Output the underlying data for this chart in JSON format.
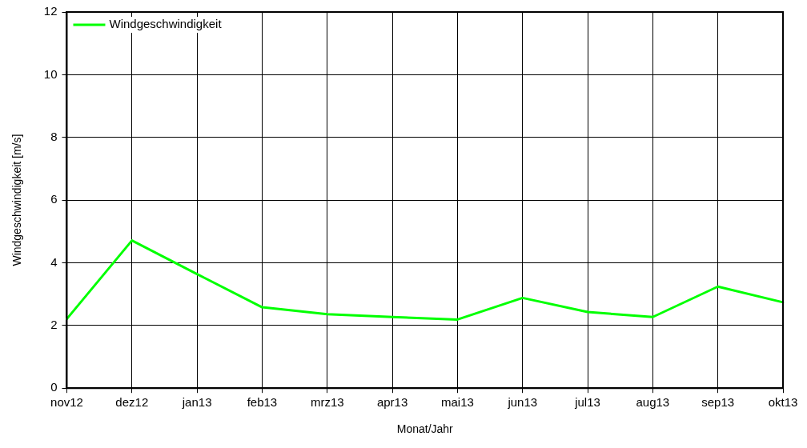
{
  "chart_data": {
    "type": "line",
    "xlabel": "Monat/Jahr",
    "ylabel": "Windgeschwindigkeit [m/s]",
    "categories": [
      "nov12",
      "dez12",
      "jan13",
      "feb13",
      "mrz13",
      "apr13",
      "mai13",
      "jun13",
      "jul13",
      "aug13",
      "sep13",
      "okt13"
    ],
    "series": [
      {
        "name": "Windgeschwindigkeit",
        "color": "#00ff00",
        "values": [
          2.21,
          4.71,
          3.64,
          2.58,
          2.36,
          2.27,
          2.19,
          2.88,
          2.43,
          2.27,
          3.24,
          2.74
        ]
      }
    ],
    "ylim": [
      0,
      12
    ],
    "yticks": [
      0,
      2,
      4,
      6,
      8,
      10,
      12
    ],
    "grid": true,
    "legend": "top left",
    "marker": "none",
    "line_style": "solid"
  }
}
